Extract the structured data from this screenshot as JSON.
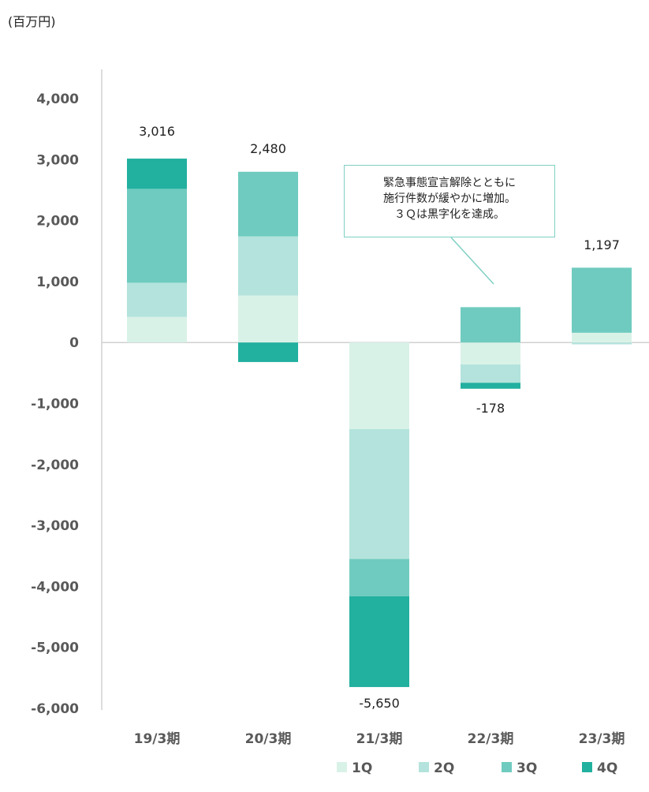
{
  "unit_label": "(百万円)",
  "callout": {
    "lines": [
      "緊急事態宣言解除とともに",
      "施行件数が緩やかに増加。",
      "３Ｑは黒字化を達成。"
    ]
  },
  "chart_data": {
    "type": "bar",
    "stacked": true,
    "categories": [
      "19/3期",
      "20/3期",
      "21/3期",
      "22/3期",
      "23/3期"
    ],
    "series": [
      {
        "name": "1Q",
        "color": "#d9f2e8",
        "values": [
          420,
          770,
          -1420,
          -360,
          160
        ]
      },
      {
        "name": "2Q",
        "color": "#b3e3dc",
        "values": [
          560,
          970,
          -2130,
          -300,
          -30
        ]
      },
      {
        "name": "3Q",
        "color": "#6fcbbf",
        "values": [
          1540,
          1060,
          -610,
          580,
          1067
        ]
      },
      {
        "name": "4Q",
        "color": "#22b09f",
        "values": [
          496,
          -320,
          -1490,
          -98,
          0
        ]
      }
    ],
    "totals": [
      3016,
      2480,
      -5650,
      -178,
      1197
    ],
    "total_labels": [
      "3,016",
      "2,480",
      "-5,650",
      "-178",
      "1,197"
    ],
    "yticks": [
      4000,
      3000,
      2000,
      1000,
      0,
      -1000,
      -2000,
      -3000,
      -4000,
      -5000,
      -6000
    ],
    "ytick_labels": [
      "4,000",
      "3,000",
      "2,000",
      "1,000",
      "0",
      "-1,000",
      "-2,000",
      "-3,000",
      "-4,000",
      "-5,000",
      "-6,000"
    ],
    "ylim": [
      -6000,
      4000
    ],
    "legend_position": "bottom-right",
    "grid": false
  }
}
